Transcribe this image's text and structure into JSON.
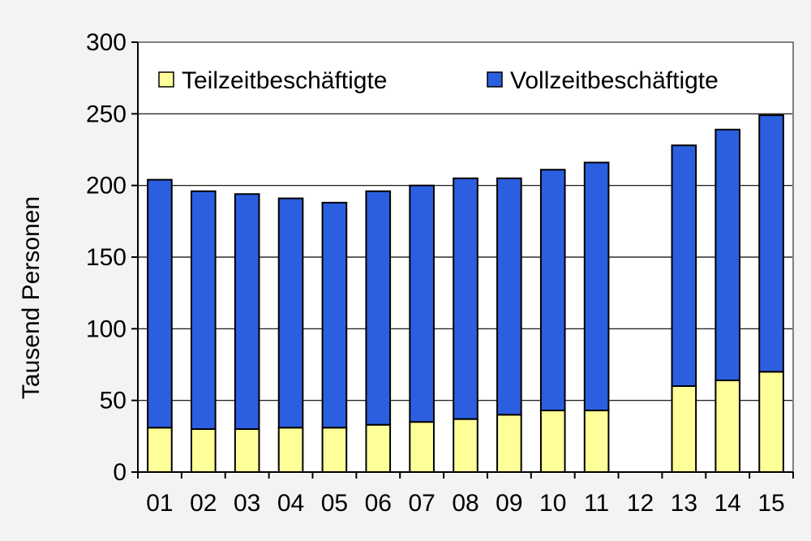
{
  "chart_data": {
    "type": "bar",
    "stacked": true,
    "categories": [
      "01",
      "02",
      "03",
      "04",
      "05",
      "06",
      "07",
      "08",
      "09",
      "10",
      "11",
      "12",
      "13",
      "14",
      "15"
    ],
    "series": [
      {
        "name": "Teilzeitbeschäftigte",
        "color": "#ffff99",
        "values": [
          31,
          30,
          30,
          31,
          31,
          33,
          35,
          37,
          40,
          43,
          43,
          null,
          60,
          64,
          70
        ]
      },
      {
        "name": "Vollzeitbeschäftigte",
        "color": "#2c5fe0",
        "values": [
          173,
          166,
          164,
          160,
          157,
          163,
          165,
          168,
          165,
          168,
          173,
          null,
          168,
          175,
          179
        ]
      }
    ],
    "ylabel": "Tausend Personen",
    "xlabel": "",
    "ylim": [
      0,
      300
    ],
    "yticks": [
      0,
      50,
      100,
      150,
      200,
      250,
      300
    ],
    "grid": "horizontal",
    "legend": "top"
  }
}
